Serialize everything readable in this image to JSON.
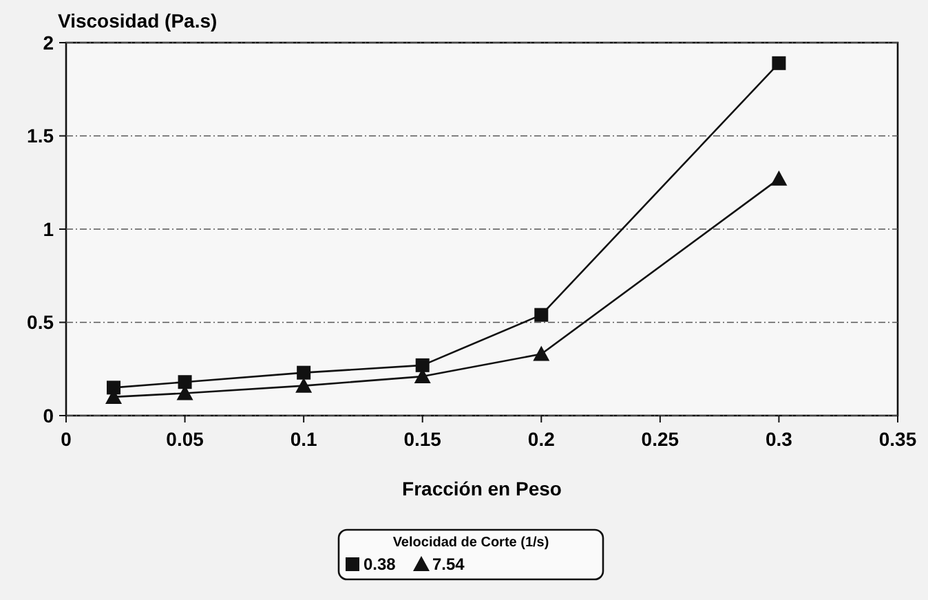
{
  "chart_data": {
    "type": "line",
    "ylabel": "Viscosidad (Pa.s)",
    "xlabel": "Fracción en Peso",
    "legend_title": "Velocidad de Corte (1/s)",
    "x": [
      0.02,
      0.05,
      0.1,
      0.15,
      0.2,
      0.3
    ],
    "series": [
      {
        "name": "0.38",
        "color": "#111111",
        "marker": "square",
        "values": [
          0.15,
          0.18,
          0.23,
          0.27,
          0.54,
          1.89
        ]
      },
      {
        "name": "7.54",
        "color": "#111111",
        "marker": "triangle",
        "values": [
          0.1,
          0.12,
          0.16,
          0.21,
          0.33,
          1.27
        ]
      }
    ],
    "xlim": [
      0,
      0.35
    ],
    "xticks": [
      0,
      0.05,
      0.1,
      0.15,
      0.2,
      0.25,
      0.3,
      0.35
    ],
    "ylim": [
      0,
      2
    ],
    "yticks": [
      0,
      0.5,
      1,
      1.5,
      2
    ],
    "grid": "y",
    "legend": "bottom",
    "line_style": "solid"
  }
}
